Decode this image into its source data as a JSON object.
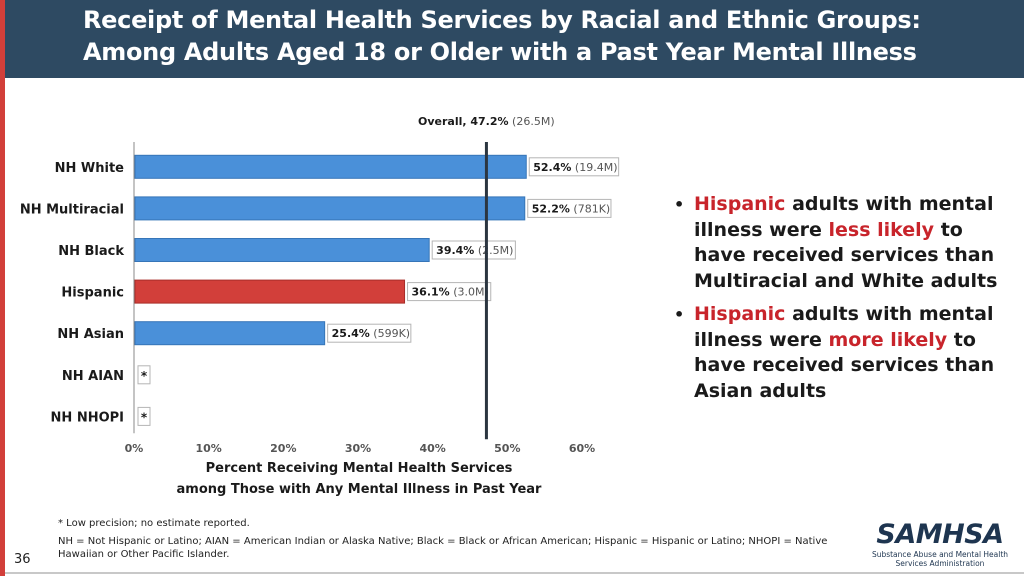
{
  "header": {
    "title_line1": "Receipt of Mental Health Services by Racial and Ethnic Groups:",
    "title_line2": "Among Adults Aged 18 or Older with a Past Year Mental Illness"
  },
  "colors": {
    "header_bg": "#2e4a62",
    "accent_red": "#d23f3a",
    "bar_blue": "#4a90d9",
    "bar_red": "#d23f3a",
    "highlight_text": "#c8242b",
    "logo_navy": "#1e3550"
  },
  "chart_data": {
    "type": "bar",
    "orientation": "horizontal",
    "categories": [
      "NH White",
      "NH Multiracial",
      "NH Black",
      "Hispanic",
      "NH Asian",
      "NH AIAN",
      "NH NHOPI"
    ],
    "values": [
      52.4,
      52.2,
      39.4,
      36.1,
      25.4,
      null,
      null
    ],
    "counts": [
      "(19.4M)",
      "(781K)",
      "(2.5M)",
      "(3.0M)",
      "(599K)",
      "",
      ""
    ],
    "value_labels": [
      "52.4%",
      "52.2%",
      "39.4%",
      "36.1%",
      "25.4%",
      "*",
      "*"
    ],
    "highlight_index": 3,
    "reference_line": {
      "value": 47.2,
      "label": "Overall, 47.2%",
      "count": "(26.5M)"
    },
    "xlim": [
      0,
      60
    ],
    "xticks": [
      0,
      10,
      20,
      30,
      40,
      50,
      60
    ],
    "xtick_labels": [
      "0%",
      "10%",
      "20%",
      "30%",
      "40%",
      "50%",
      "60%"
    ],
    "xlabel_line1": "Percent Receiving Mental Health Services",
    "xlabel_line2": "among Those with Any Mental Illness in Past Year",
    "grid": false
  },
  "bullets": [
    {
      "highlight": "Hispanic",
      "mid": " adults with mental illness were ",
      "emph": "less likely",
      "rest": " to have received services than Multiracial and White adults"
    },
    {
      "highlight": "Hispanic",
      "mid": " adults with mental illness were ",
      "emph": "more likely",
      "rest": " to have received services than Asian adults"
    }
  ],
  "footnotes": {
    "line1": "* Low precision; no estimate reported.",
    "line2": "NH = Not Hispanic or Latino; AIAN = American Indian or Alaska Native; Black = Black or African American; Hispanic = Hispanic or Latino; NHOPI = Native Hawaiian or Other Pacific Islander."
  },
  "page_number": "36",
  "logo": {
    "wordmark": "SAMHSA",
    "subtitle_line1": "Substance Abuse and Mental Health",
    "subtitle_line2": "Services Administration"
  }
}
